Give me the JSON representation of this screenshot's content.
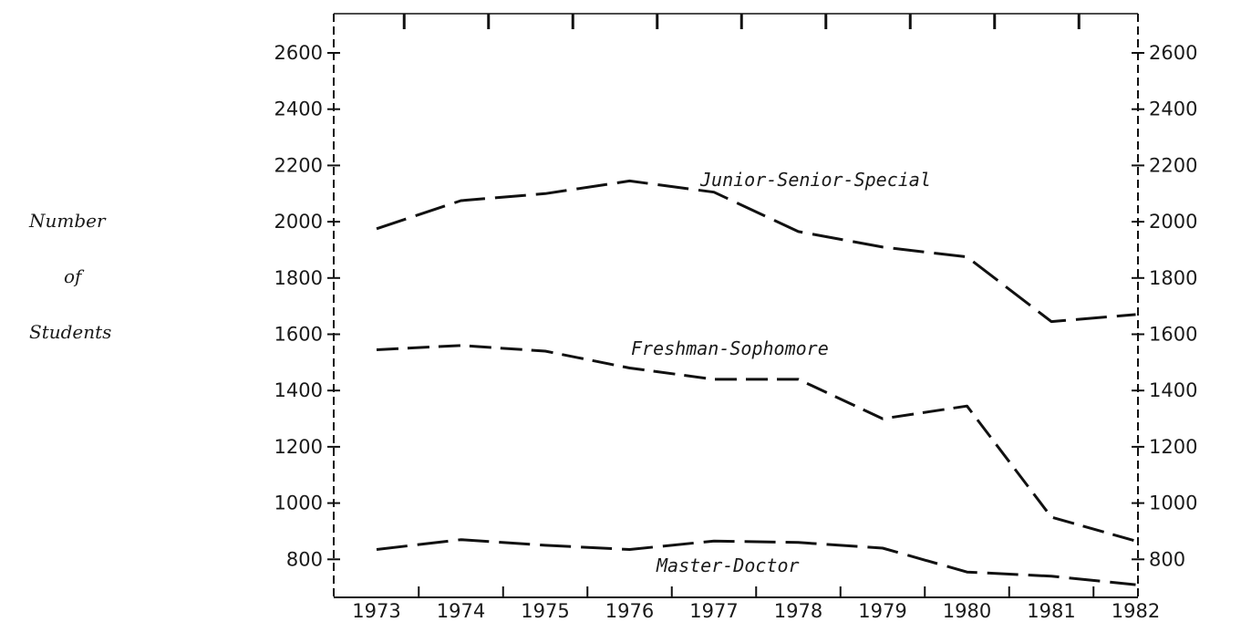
{
  "chart_data": {
    "type": "line",
    "title": "",
    "xlabel": "",
    "ylabel": [
      "Number",
      "of",
      "Students"
    ],
    "x": [
      "1973",
      "1974",
      "1975",
      "1976",
      "1977",
      "1978",
      "1979",
      "1980",
      "1981",
      "1982"
    ],
    "yticks": [
      800,
      1000,
      1200,
      1400,
      1600,
      1800,
      2000,
      2200,
      2400,
      2600
    ],
    "ylim": [
      660,
      2730
    ],
    "grid": false,
    "line_style": "dashed",
    "series": [
      {
        "name": "Junior-Senior-Special",
        "values": [
          1975,
          2075,
          2100,
          2145,
          2105,
          1965,
          1910,
          1875,
          1645,
          1670
        ]
      },
      {
        "name": "Freshman-Sophomore",
        "values": [
          1545,
          1560,
          1540,
          1480,
          1440,
          1440,
          1300,
          1345,
          950,
          865
        ]
      },
      {
        "name": "Master-Doctor",
        "values": [
          835,
          870,
          850,
          835,
          865,
          860,
          840,
          755,
          740,
          710
        ]
      }
    ]
  }
}
